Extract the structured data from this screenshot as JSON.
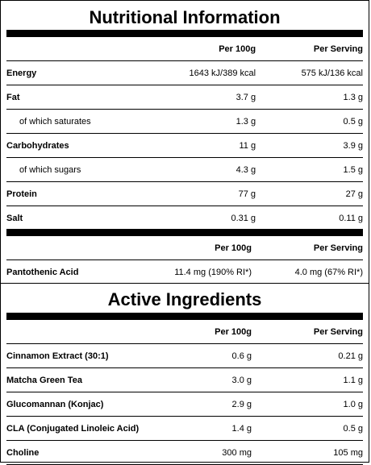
{
  "nutrition": {
    "title": "Nutritional Information",
    "col_per100": "Per 100g",
    "col_serving": "Per Serving",
    "rows": [
      {
        "name": "Energy",
        "per100": "1643 kJ/389 kcal",
        "serving": "575 kJ/136 kcal"
      },
      {
        "name": "Fat",
        "per100": "3.7 g",
        "serving": "1.3 g"
      },
      {
        "name": "of which saturates",
        "per100": "1.3 g",
        "serving": "0.5 g"
      },
      {
        "name": "Carbohydrates",
        "per100": "11 g",
        "serving": "3.9 g"
      },
      {
        "name": "of which sugars",
        "per100": "4.3 g",
        "serving": "1.5 g"
      },
      {
        "name": "Protein",
        "per100": "77 g",
        "serving": "27 g"
      },
      {
        "name": "Salt",
        "per100": "0.31 g",
        "serving": "0.11 g"
      }
    ],
    "vitamin_col_per100": "Per 100g",
    "vitamin_col_serving": "Per Serving",
    "vitamins": [
      {
        "name": "Pantothenic Acid",
        "per100": "11.4 mg (190% RI*)",
        "serving": "4.0 mg (67% RI*)"
      }
    ]
  },
  "active": {
    "title": "Active Ingredients",
    "col_per100": "Per 100g",
    "col_serving": "Per Serving",
    "rows": [
      {
        "name": "Cinnamon Extract (30:1)",
        "per100": "0.6  g",
        "serving": "0.21  g"
      },
      {
        "name": "Matcha Green Tea",
        "per100": "3.0 g",
        "serving": "1.1 g"
      },
      {
        "name": "Glucomannan (Konjac)",
        "per100": "2.9 g",
        "serving": "1.0 g"
      },
      {
        "name": "CLA (Conjugated Linoleic Acid)",
        "per100": "1.4 g",
        "serving": "0.5 g"
      },
      {
        "name": "Choline",
        "per100": "300 mg",
        "serving": "105 mg"
      }
    ]
  }
}
